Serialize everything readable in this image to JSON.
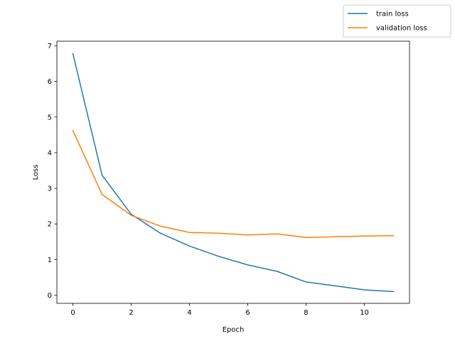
{
  "chart_data": {
    "type": "line",
    "title": "",
    "xlabel": "Epoch",
    "ylabel": "Loss",
    "xlim": [
      -0.55,
      11.55
    ],
    "ylim": [
      -0.23,
      7.13
    ],
    "xticks": [
      0,
      2,
      4,
      6,
      8,
      10
    ],
    "yticks": [
      0,
      1,
      2,
      3,
      4,
      5,
      6,
      7
    ],
    "grid": false,
    "legend_position": "top-right",
    "series": [
      {
        "name": "train loss",
        "color": "#1f77b4",
        "x": [
          0,
          1,
          2,
          3,
          4,
          5,
          6,
          7,
          8,
          9,
          10,
          11
        ],
        "y": [
          6.78,
          3.37,
          2.27,
          1.74,
          1.38,
          1.09,
          0.85,
          0.67,
          0.37,
          0.26,
          0.15,
          0.1
        ]
      },
      {
        "name": "validation loss",
        "color": "#ff7f0e",
        "x": [
          0,
          1,
          2,
          3,
          4,
          5,
          6,
          7,
          8,
          9,
          10,
          11
        ],
        "y": [
          4.62,
          2.83,
          2.24,
          1.94,
          1.76,
          1.74,
          1.69,
          1.72,
          1.62,
          1.64,
          1.66,
          1.67
        ]
      }
    ]
  }
}
